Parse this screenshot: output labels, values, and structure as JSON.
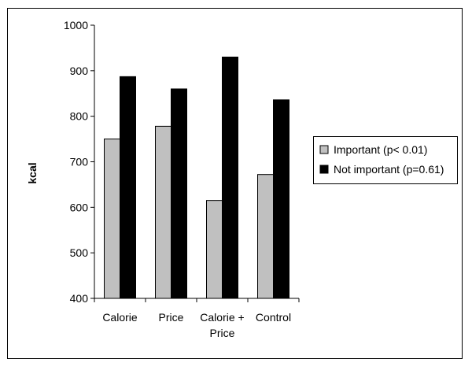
{
  "chart_data": {
    "type": "bar",
    "title": "",
    "xlabel": "",
    "ylabel": "kcal",
    "ylim": [
      400,
      1000
    ],
    "yticks": [
      400,
      500,
      600,
      700,
      800,
      900,
      1000
    ],
    "categories": [
      [
        "Calorie"
      ],
      [
        "Price"
      ],
      [
        "Calorie +",
        "Price"
      ],
      [
        "Control"
      ]
    ],
    "series": [
      {
        "name": "Important (p< 0.01)",
        "values": [
          750,
          778,
          615,
          672
        ],
        "color": "#c0c0c0"
      },
      {
        "name": "Not important (p=0.61)",
        "values": [
          887,
          860,
          930,
          836
        ],
        "color": "#000000"
      }
    ],
    "legend": "right",
    "grid": false
  }
}
